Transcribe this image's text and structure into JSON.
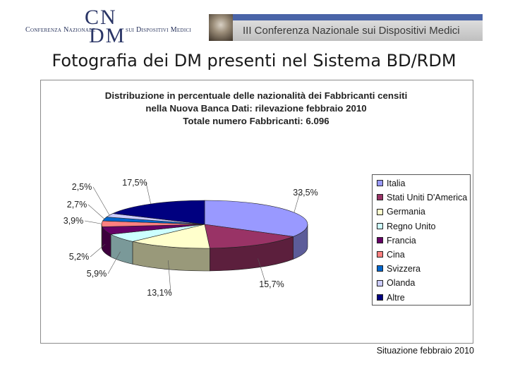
{
  "header": {
    "logo_left_text": "Conferenza Nazionale",
    "logo_initials_top": "CN",
    "logo_initials_bottom": "DM",
    "logo_right_text": "sui Dispositivi Medici",
    "banner_text": "III Conferenza Nazionale sui Dispositivi Medici"
  },
  "slide": {
    "title": "Fotografia dei DM presenti nel Sistema BD/RDM",
    "footnote": "Situazione febbraio 2010"
  },
  "chart_data": {
    "type": "pie",
    "title_lines": [
      "Distribuzione in percentuale delle nazionalità dei Fabbricanti censiti",
      "nella Nuova Banca Dati: rilevazione febbraio 2010",
      "Totale numero Fabbricanti: 6.096"
    ],
    "legend_placement": "right",
    "series": [
      {
        "name": "Italia",
        "value": 33.5,
        "label": "33,5%",
        "color": "#9999ff"
      },
      {
        "name": "Stati Uniti D'America",
        "value": 15.7,
        "label": "15,7%",
        "color": "#993366"
      },
      {
        "name": "Germania",
        "value": 13.1,
        "label": "13,1%",
        "color": "#ffffcc"
      },
      {
        "name": "Regno Unito",
        "value": 5.9,
        "label": "5,9%",
        "color": "#ccffff"
      },
      {
        "name": "Francia",
        "value": 5.2,
        "label": "5,2%",
        "color": "#660066"
      },
      {
        "name": "Cina",
        "value": 3.9,
        "label": "3,9%",
        "color": "#ff8080"
      },
      {
        "name": "Svizzera",
        "value": 2.7,
        "label": "2,7%",
        "color": "#0066cc"
      },
      {
        "name": "Olanda",
        "value": 2.5,
        "label": "2,5%",
        "color": "#ccccff"
      },
      {
        "name": "Altre",
        "value": 17.5,
        "label": "17,5%",
        "color": "#000080"
      }
    ]
  }
}
